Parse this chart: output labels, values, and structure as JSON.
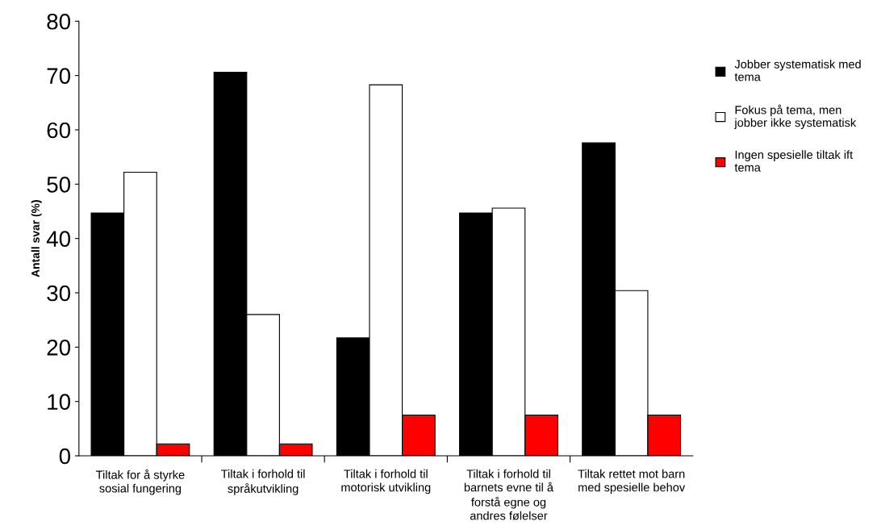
{
  "chart_data": {
    "type": "bar",
    "ylabel": "Antall svar (%)",
    "categories": [
      "Tiltak for å styrke sosial fungering",
      "Tiltak i forhold til språkutvikling",
      "Tiltak i forhold til motorisk utvikling",
      "Tiltak i forhold til barnets evne til å forstå egne og andres følelser",
      "Tiltak rettet mot barn med spesielle behov"
    ],
    "series": [
      {
        "name": "Jobber systematisk med tema",
        "color": "#000000",
        "values": [
          44.7,
          70.6,
          21.7,
          44.7,
          57.6
        ]
      },
      {
        "name": "Fokus på tema, men jobber ikke systematisk",
        "color": "#ffffff",
        "values": [
          52.2,
          26.0,
          68.3,
          45.6,
          30.4
        ]
      },
      {
        "name": "Ingen spesielle tiltak ift tema",
        "color": "#ff0000",
        "values": [
          2.2,
          2.2,
          7.5,
          7.5,
          7.5
        ]
      }
    ],
    "ylim": [
      0,
      80
    ],
    "yticks": [
      0,
      10,
      20,
      30,
      40,
      50,
      60,
      70,
      80
    ],
    "grid": false,
    "legend": "right"
  }
}
